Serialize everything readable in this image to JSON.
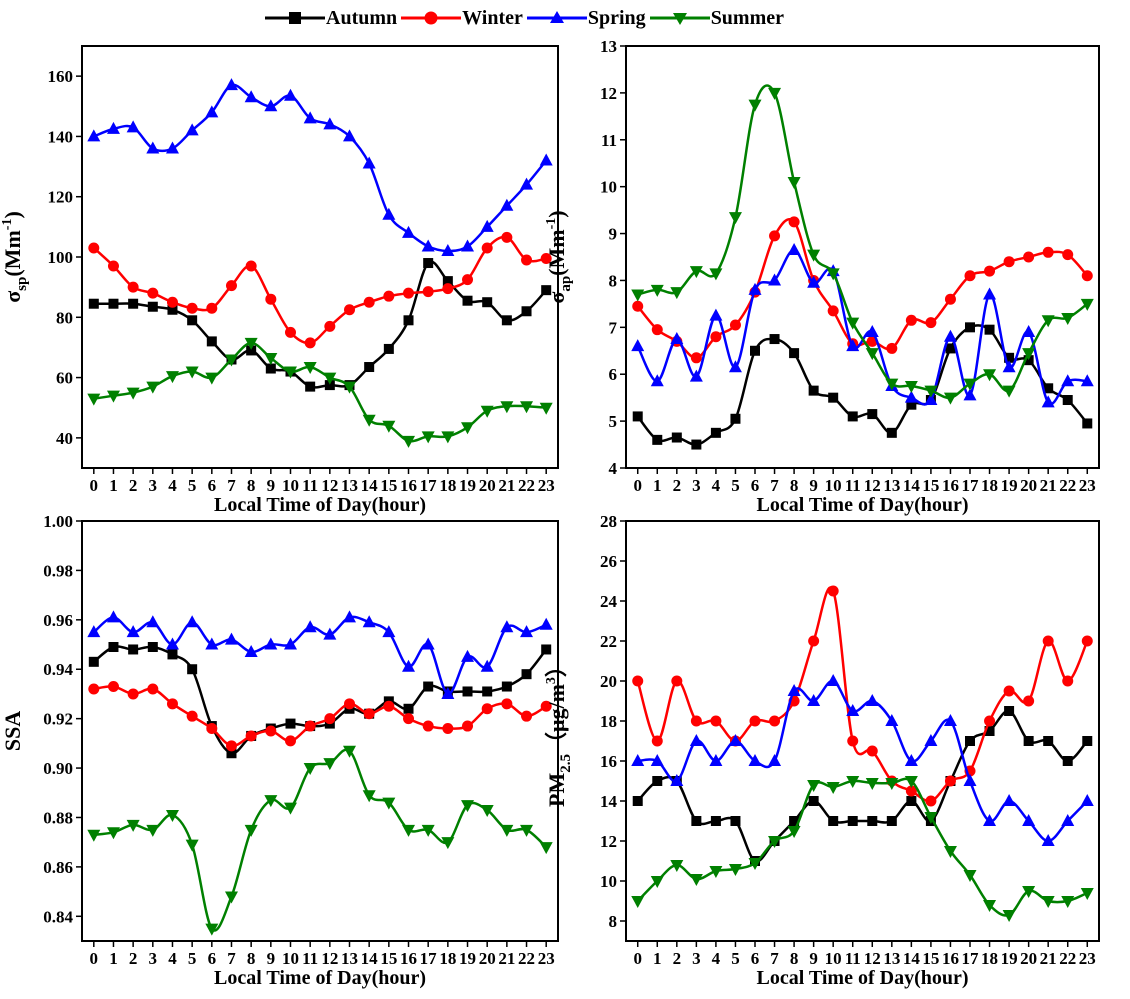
{
  "legend": {
    "position": "top-center",
    "entries": [
      {
        "name": "Autumn",
        "color": "#000000",
        "marker": "square"
      },
      {
        "name": "Winter",
        "color": "#ff0000",
        "marker": "circle"
      },
      {
        "name": "Spring",
        "color": "#0000ff",
        "marker": "triangle-up"
      },
      {
        "name": "Summer",
        "color": "#008000",
        "marker": "triangle-down"
      }
    ]
  },
  "chart_data": [
    {
      "type": "line",
      "title": "",
      "xlabel": "Local Time of Day(hour)",
      "ylabel_main": "σ",
      "ylabel_sub": "sp",
      "ylabel_rest": "(Mm",
      "ylabel_sup": "-1",
      "ylabel_end": ")",
      "x": [
        0,
        1,
        2,
        3,
        4,
        5,
        6,
        7,
        8,
        9,
        10,
        11,
        12,
        13,
        14,
        15,
        16,
        17,
        18,
        19,
        20,
        21,
        22,
        23
      ],
      "xlim": [
        -0.6,
        23.6
      ],
      "ylim": [
        30,
        170
      ],
      "yticks": [
        40,
        60,
        80,
        100,
        120,
        140,
        160
      ],
      "ytick_labels": [
        "40",
        "60",
        "80",
        "100",
        "120",
        "140",
        "160"
      ],
      "grid": false,
      "series": [
        {
          "name": "Autumn",
          "values": [
            84.5,
            84.5,
            84.5,
            83.5,
            82.5,
            79,
            72,
            66,
            69,
            63,
            62,
            57,
            57.5,
            57.5,
            63.5,
            69.5,
            79,
            98,
            92,
            85.5,
            85,
            79,
            82,
            89
          ]
        },
        {
          "name": "Winter",
          "values": [
            103,
            97,
            90,
            88,
            85,
            83,
            83,
            90.5,
            97,
            86,
            75,
            71.5,
            77,
            82.5,
            85,
            87,
            88,
            88.5,
            89.5,
            92.5,
            103,
            106.5,
            99,
            99.5
          ]
        },
        {
          "name": "Spring",
          "values": [
            140,
            142.5,
            143,
            136,
            136,
            142,
            148,
            157,
            153,
            150,
            153.5,
            146,
            144,
            140,
            131,
            114,
            108,
            103.5,
            102,
            103.5,
            110,
            117,
            124,
            132
          ]
        },
        {
          "name": "Summer",
          "values": [
            53,
            54,
            55,
            57,
            60.5,
            62,
            60,
            66,
            71.5,
            66.5,
            62,
            63.5,
            60,
            57,
            46,
            44,
            39,
            40.5,
            40.5,
            43.5,
            49,
            50.5,
            50.5,
            50
          ]
        }
      ]
    },
    {
      "type": "line",
      "title": "",
      "xlabel": "Local Time of Day(hour)",
      "ylabel_main": "σ",
      "ylabel_sub": "ap",
      "ylabel_rest": "(Mm",
      "ylabel_sup": "-1",
      "ylabel_end": ")",
      "x": [
        0,
        1,
        2,
        3,
        4,
        5,
        6,
        7,
        8,
        9,
        10,
        11,
        12,
        13,
        14,
        15,
        16,
        17,
        18,
        19,
        20,
        21,
        22,
        23
      ],
      "xlim": [
        -0.6,
        23.6
      ],
      "ylim": [
        4,
        13
      ],
      "yticks": [
        4,
        5,
        6,
        7,
        8,
        9,
        10,
        11,
        12,
        13
      ],
      "ytick_labels": [
        "4",
        "5",
        "6",
        "7",
        "8",
        "9",
        "10",
        "11",
        "12",
        "13"
      ],
      "grid": false,
      "series": [
        {
          "name": "Autumn",
          "values": [
            5.1,
            4.6,
            4.65,
            4.5,
            4.75,
            5.05,
            6.5,
            6.75,
            6.45,
            5.65,
            5.5,
            5.1,
            5.15,
            4.75,
            5.35,
            5.45,
            6.55,
            7.0,
            6.95,
            6.35,
            6.3,
            5.7,
            5.45,
            4.95
          ]
        },
        {
          "name": "Winter",
          "values": [
            7.45,
            6.95,
            6.7,
            6.35,
            6.8,
            7.05,
            7.75,
            8.95,
            9.25,
            8.0,
            7.35,
            6.65,
            6.7,
            6.55,
            7.15,
            7.1,
            7.6,
            8.1,
            8.2,
            8.4,
            8.5,
            8.6,
            8.55,
            8.1
          ]
        },
        {
          "name": "Spring",
          "values": [
            6.6,
            5.85,
            6.75,
            5.95,
            7.25,
            6.15,
            7.8,
            8.0,
            8.65,
            7.95,
            8.2,
            6.6,
            6.9,
            5.75,
            5.5,
            5.45,
            6.8,
            5.55,
            7.7,
            6.15,
            6.9,
            5.4,
            5.85,
            5.85
          ]
        },
        {
          "name": "Summer",
          "values": [
            7.7,
            7.8,
            7.75,
            8.2,
            8.15,
            9.35,
            11.75,
            12.0,
            10.1,
            8.55,
            8.15,
            7.1,
            6.45,
            5.8,
            5.75,
            5.65,
            5.5,
            5.8,
            6.0,
            5.65,
            6.45,
            7.15,
            7.2,
            7.5
          ]
        }
      ]
    },
    {
      "type": "line",
      "title": "",
      "xlabel": "Local Time of Day(hour)",
      "ylabel_main": "SSA",
      "ylabel_sub": "",
      "ylabel_rest": "",
      "ylabel_sup": "",
      "ylabel_end": "",
      "x": [
        0,
        1,
        2,
        3,
        4,
        5,
        6,
        7,
        8,
        9,
        10,
        11,
        12,
        13,
        14,
        15,
        16,
        17,
        18,
        19,
        20,
        21,
        22,
        23
      ],
      "xlim": [
        -0.6,
        23.6
      ],
      "ylim": [
        0.83,
        1.0
      ],
      "yticks": [
        0.84,
        0.86,
        0.88,
        0.9,
        0.92,
        0.94,
        0.96,
        0.98,
        1.0
      ],
      "ytick_labels": [
        "0.84",
        "0.86",
        "0.88",
        "0.90",
        "0.92",
        "0.94",
        "0.96",
        "0.98",
        "1.00"
      ],
      "grid": false,
      "series": [
        {
          "name": "Autumn",
          "values": [
            0.943,
            0.949,
            0.948,
            0.949,
            0.946,
            0.94,
            0.917,
            0.906,
            0.913,
            0.916,
            0.918,
            0.917,
            0.918,
            0.924,
            0.922,
            0.927,
            0.924,
            0.933,
            0.931,
            0.931,
            0.931,
            0.933,
            0.938,
            0.948
          ]
        },
        {
          "name": "Winter",
          "values": [
            0.932,
            0.933,
            0.93,
            0.932,
            0.926,
            0.921,
            0.916,
            0.909,
            0.913,
            0.915,
            0.911,
            0.917,
            0.92,
            0.926,
            0.922,
            0.925,
            0.92,
            0.917,
            0.916,
            0.917,
            0.924,
            0.926,
            0.921,
            0.925
          ]
        },
        {
          "name": "Spring",
          "values": [
            0.955,
            0.961,
            0.955,
            0.959,
            0.95,
            0.959,
            0.95,
            0.952,
            0.947,
            0.95,
            0.95,
            0.957,
            0.954,
            0.961,
            0.959,
            0.955,
            0.941,
            0.95,
            0.93,
            0.945,
            0.941,
            0.957,
            0.955,
            0.958
          ]
        },
        {
          "name": "Summer",
          "values": [
            0.873,
            0.874,
            0.877,
            0.875,
            0.881,
            0.869,
            0.835,
            0.848,
            0.875,
            0.887,
            0.884,
            0.9,
            0.902,
            0.907,
            0.889,
            0.886,
            0.875,
            0.875,
            0.87,
            0.885,
            0.883,
            0.875,
            0.875,
            0.868
          ]
        }
      ]
    },
    {
      "type": "line",
      "title": "",
      "xlabel": "Local Time of Day(hour)",
      "ylabel_main": "PM",
      "ylabel_sub": "2.5",
      "ylabel_rest": "（μg/m",
      "ylabel_sup": "3",
      "ylabel_end": "）",
      "x": [
        0,
        1,
        2,
        3,
        4,
        5,
        6,
        7,
        8,
        9,
        10,
        11,
        12,
        13,
        14,
        15,
        16,
        17,
        18,
        19,
        20,
        21,
        22,
        23
      ],
      "xlim": [
        -0.6,
        23.6
      ],
      "ylim": [
        7,
        28
      ],
      "yticks": [
        8,
        10,
        12,
        14,
        16,
        18,
        20,
        22,
        24,
        26,
        28
      ],
      "ytick_labels": [
        "8",
        "10",
        "12",
        "14",
        "16",
        "18",
        "20",
        "22",
        "24",
        "26",
        "28"
      ],
      "grid": false,
      "series": [
        {
          "name": "Autumn",
          "values": [
            14,
            15,
            15,
            13,
            13,
            13,
            11,
            12,
            13,
            14,
            13,
            13,
            13,
            13,
            14,
            13,
            15,
            17,
            17.5,
            18.5,
            17,
            17,
            16,
            17
          ]
        },
        {
          "name": "Winter",
          "values": [
            20,
            17,
            20,
            18,
            18,
            17,
            18,
            18,
            19,
            22,
            24.5,
            17,
            16.5,
            15,
            14.5,
            14,
            15,
            15.5,
            18,
            19.5,
            19,
            22,
            20,
            22
          ]
        },
        {
          "name": "Spring",
          "values": [
            16,
            16,
            15,
            17,
            16,
            17,
            16,
            16,
            19.5,
            19,
            20,
            18.5,
            19,
            18,
            16,
            17,
            18,
            15,
            13,
            14,
            13,
            12,
            13,
            14
          ]
        },
        {
          "name": "Summer",
          "values": [
            9,
            10,
            10.8,
            10.1,
            10.5,
            10.6,
            10.9,
            12,
            12.5,
            14.8,
            14.7,
            15,
            14.9,
            14.9,
            15,
            13.2,
            11.5,
            10.3,
            8.8,
            8.3,
            9.5,
            9,
            9,
            9.4
          ]
        }
      ]
    }
  ]
}
